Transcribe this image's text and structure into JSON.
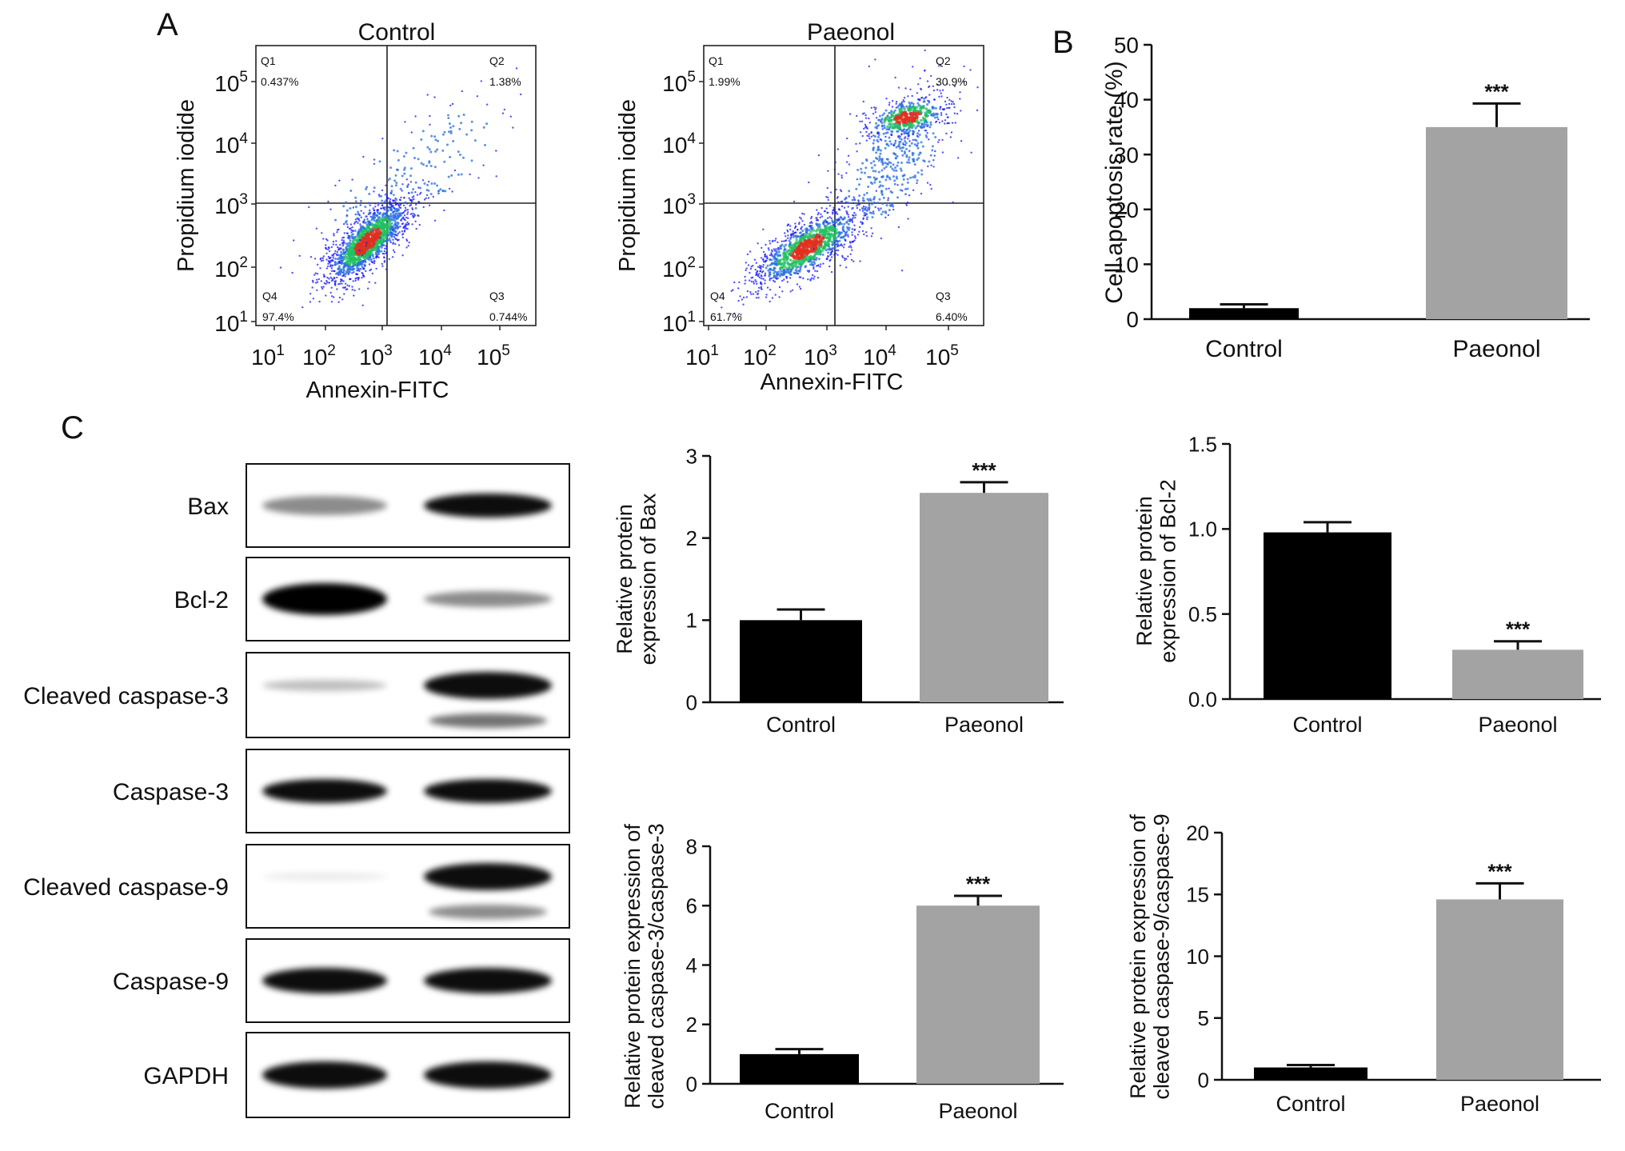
{
  "panel_labels": {
    "a": "A",
    "b": "B",
    "c": "C"
  },
  "colors": {
    "control_bar": "#000000",
    "paeonol_bar": "#a3a3a3",
    "axis": "#111111",
    "density_low": "#1a1aff",
    "density_mid": "#20c060",
    "density_high": "#e03020"
  },
  "flow": {
    "y_axis_label": "Propidium iodide",
    "x_axis_label": "Annexin-FITC",
    "tick_labels": [
      {
        "base": "10",
        "exp": "1"
      },
      {
        "base": "10",
        "exp": "2"
      },
      {
        "base": "10",
        "exp": "3"
      },
      {
        "base": "10",
        "exp": "4"
      },
      {
        "base": "10",
        "exp": "5"
      }
    ],
    "panels": [
      {
        "title": "Control",
        "quadrants": {
          "q1": {
            "label": "Q1",
            "value": "0.437%"
          },
          "q2": {
            "label": "Q2",
            "value": "1.38%"
          },
          "q3": {
            "label": "Q3",
            "value": "0.744%"
          },
          "q4": {
            "label": "Q4",
            "value": "97.4%"
          }
        }
      },
      {
        "title": "Paeonol",
        "quadrants": {
          "q1": {
            "label": "Q1",
            "value": "1.99%"
          },
          "q2": {
            "label": "Q2",
            "value": "30.9%"
          },
          "q3": {
            "label": "Q3",
            "value": "6.40%"
          },
          "q4": {
            "label": "Q4",
            "value": "61.7%"
          }
        }
      }
    ]
  },
  "blot": {
    "bands": [
      "Bax",
      "Bcl-2",
      "Cleaved caspase-3",
      "Caspase-3",
      "Cleaved caspase-9",
      "Caspase-9",
      "GAPDH"
    ]
  },
  "chart_data": [
    {
      "id": "B",
      "type": "bar",
      "categories": [
        "Control",
        "Paeonol"
      ],
      "values": [
        2.0,
        35.0
      ],
      "errors": [
        0.7,
        4.3
      ],
      "significance": [
        "",
        "***"
      ],
      "ylabel": "Cell apoptosis rate (%)",
      "ylim": [
        0,
        50
      ],
      "yticks": [
        "0",
        "10",
        "20",
        "30",
        "40",
        "50"
      ]
    },
    {
      "id": "bax",
      "type": "bar",
      "categories": [
        "Control",
        "Paeonol"
      ],
      "values": [
        1.0,
        2.55
      ],
      "errors": [
        0.13,
        0.13
      ],
      "significance": [
        "",
        "***"
      ],
      "ylabel_lines": [
        "Relative protein",
        "expression of Bax"
      ],
      "ylim": [
        0,
        3
      ],
      "yticks": [
        "0",
        "1",
        "2",
        "3"
      ]
    },
    {
      "id": "bcl2",
      "type": "bar",
      "categories": [
        "Control",
        "Paeonol"
      ],
      "values": [
        0.98,
        0.29
      ],
      "errors": [
        0.06,
        0.05
      ],
      "significance": [
        "",
        "***"
      ],
      "ylabel_lines": [
        "Relative protein",
        "expression of Bcl-2"
      ],
      "ylim": [
        0,
        1.5
      ],
      "yticks": [
        "0.0",
        "0.5",
        "1.0",
        "1.5"
      ]
    },
    {
      "id": "casp3",
      "type": "bar",
      "categories": [
        "Control",
        "Paeonol"
      ],
      "values": [
        1.0,
        6.0
      ],
      "errors": [
        0.17,
        0.33
      ],
      "significance": [
        "",
        "***"
      ],
      "ylabel_lines": [
        "Relative protein expression of",
        "cleaved caspase-3/caspase-3"
      ],
      "ylim": [
        0,
        8
      ],
      "yticks": [
        "0",
        "2",
        "4",
        "6",
        "8"
      ]
    },
    {
      "id": "casp9",
      "type": "bar",
      "categories": [
        "Control",
        "Paeonol"
      ],
      "values": [
        1.0,
        14.6
      ],
      "errors": [
        0.2,
        1.3
      ],
      "significance": [
        "",
        "***"
      ],
      "ylabel_lines": [
        "Relative protein expression of",
        "cleaved caspase-9/caspase-9"
      ],
      "ylim": [
        0,
        20
      ],
      "yticks": [
        "0",
        "5",
        "10",
        "15",
        "20"
      ]
    }
  ]
}
